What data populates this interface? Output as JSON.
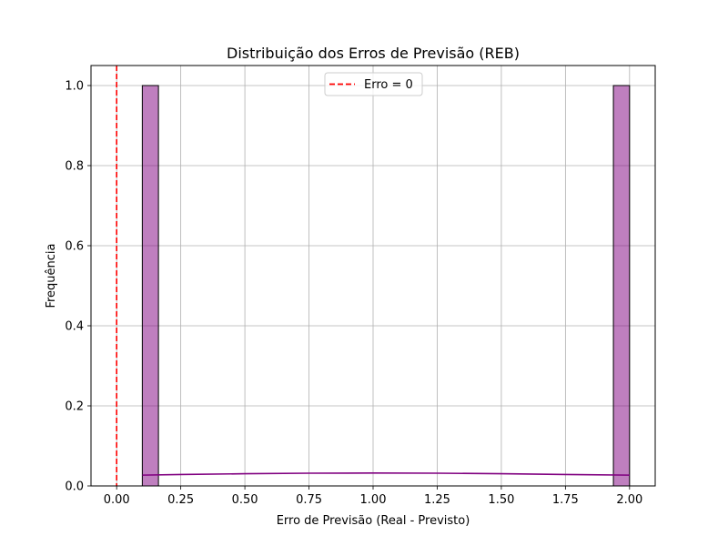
{
  "chart_data": {
    "type": "bar",
    "title": "Distribuição dos Erros de Previsão (REB)",
    "xlabel": "Erro de Previsão (Real - Previsto)",
    "ylabel": "Frequência",
    "xlim": [
      -0.1,
      2.1
    ],
    "ylim": [
      0,
      1.05
    ],
    "xticks": [
      0.0,
      0.25,
      0.5,
      0.75,
      1.0,
      1.25,
      1.5,
      1.75,
      2.0
    ],
    "xtick_labels": [
      "0.00",
      "0.25",
      "0.50",
      "0.75",
      "1.00",
      "1.25",
      "1.50",
      "1.75",
      "2.00"
    ],
    "yticks": [
      0.0,
      0.2,
      0.4,
      0.6,
      0.8,
      1.0
    ],
    "ytick_labels": [
      "0.0",
      "0.2",
      "0.4",
      "0.6",
      "0.8",
      "1.0"
    ],
    "grid": true,
    "histogram": {
      "bins": [
        {
          "x0": 0.1,
          "x1": 0.163,
          "count": 1
        },
        {
          "x0": 1.937,
          "x1": 2.0,
          "count": 1
        }
      ],
      "fill_color": "#800080",
      "fill_opacity": 0.5,
      "edge_color": "#000000"
    },
    "kde": {
      "color": "#800080",
      "x": [
        0.1,
        0.25,
        0.5,
        0.75,
        1.0,
        1.25,
        1.5,
        1.75,
        2.0
      ],
      "y": [
        0.027,
        0.0285,
        0.0305,
        0.0318,
        0.0322,
        0.0318,
        0.0305,
        0.0285,
        0.027
      ]
    },
    "reference_line": {
      "x": 0,
      "color": "#ff0000",
      "style": "dashed",
      "label": "Erro = 0"
    },
    "legend": {
      "position": "upper center",
      "entries": [
        "Erro = 0"
      ]
    }
  }
}
